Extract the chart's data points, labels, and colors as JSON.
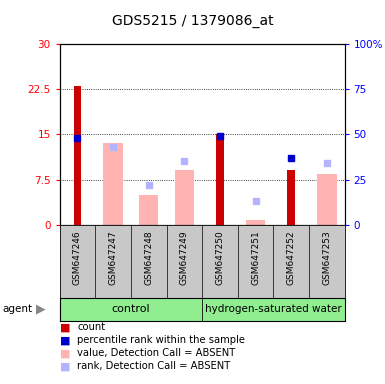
{
  "title": "GDS5215 / 1379086_at",
  "samples": [
    "GSM647246",
    "GSM647247",
    "GSM647248",
    "GSM647249",
    "GSM647250",
    "GSM647251",
    "GSM647252",
    "GSM647253"
  ],
  "count_values": [
    23.0,
    null,
    null,
    null,
    15.0,
    null,
    9.0,
    null
  ],
  "rank_pct_values": [
    48.0,
    null,
    null,
    null,
    49.0,
    null,
    37.0,
    null
  ],
  "absent_value_bars": [
    null,
    13.5,
    5.0,
    9.0,
    null,
    0.8,
    null,
    8.5
  ],
  "absent_rank_pct_bars": [
    null,
    43.0,
    22.0,
    35.0,
    null,
    13.0,
    null,
    34.0
  ],
  "ylim_left": [
    0,
    30
  ],
  "ylim_right": [
    0,
    100
  ],
  "yticks_left": [
    0,
    7.5,
    15.0,
    22.5,
    30
  ],
  "yticks_right": [
    0,
    25,
    50,
    75,
    100
  ],
  "left_tick_labels": [
    "0",
    "7.5",
    "15",
    "22.5",
    "30"
  ],
  "right_tick_labels": [
    "0",
    "25",
    "50",
    "75",
    "100%"
  ],
  "count_color": "#cc0000",
  "rank_color": "#0000cc",
  "absent_value_color": "#ffb3b3",
  "absent_rank_color": "#b3b3ff",
  "legend_items": [
    {
      "label": "count",
      "color": "#cc0000"
    },
    {
      "label": "percentile rank within the sample",
      "color": "#0000cc"
    },
    {
      "label": "value, Detection Call = ABSENT",
      "color": "#ffb3b3"
    },
    {
      "label": "rank, Detection Call = ABSENT",
      "color": "#b3b3ff"
    }
  ]
}
